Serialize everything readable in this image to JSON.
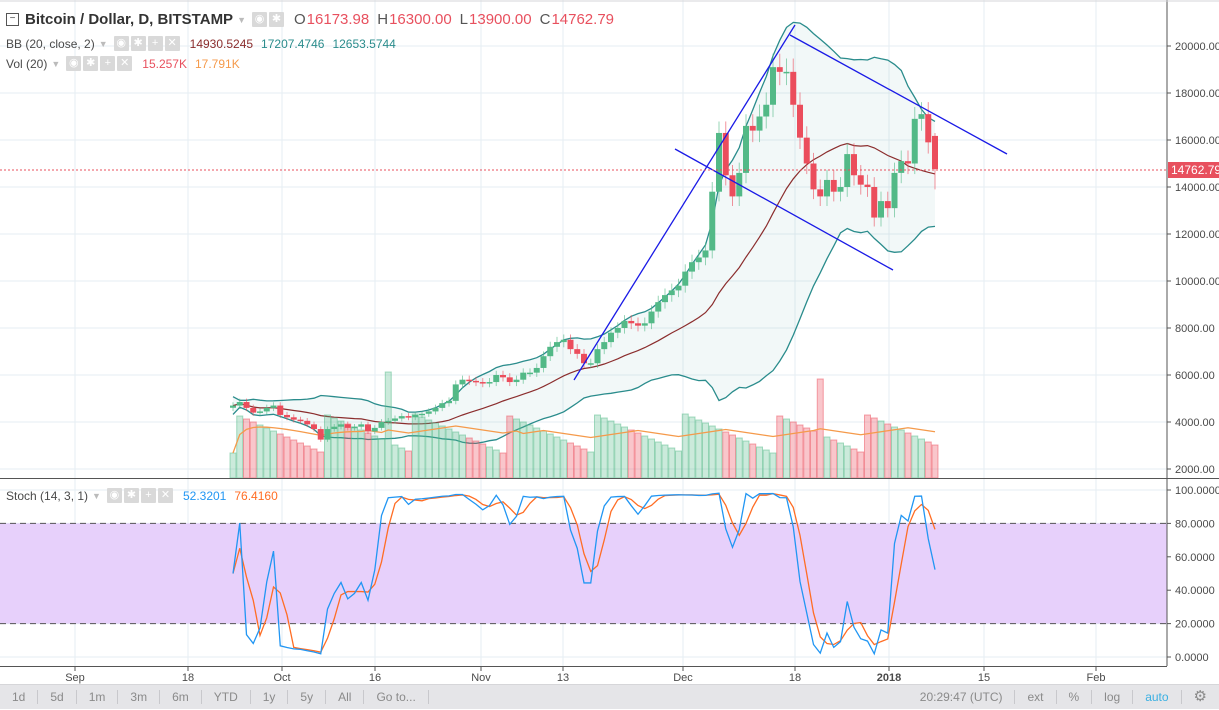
{
  "header": {
    "symbol_title": "Bitcoin / Dollar, D, BITSTAMP",
    "ohlc": {
      "o_label": "O",
      "o": "16173.98",
      "h_label": "H",
      "h": "16300.00",
      "l_label": "L",
      "l": "13900.00",
      "c_label": "C",
      "c": "14762.79"
    },
    "bb": {
      "label": "BB (20, close, 2)",
      "basis": "14930.5245",
      "upper": "17207.4746",
      "lower": "12653.5744"
    },
    "vol": {
      "label": "Vol (20)",
      "value": "15.257K",
      "ma": "17.791K"
    },
    "stoch": {
      "label": "Stoch (14, 3, 1)",
      "k": "52.3201",
      "d": "76.4160"
    }
  },
  "last_price_tag": "14762.79",
  "toolbar": {
    "ranges": [
      "1d",
      "5d",
      "1m",
      "3m",
      "6m",
      "YTD",
      "1y",
      "5y",
      "All",
      "Go to..."
    ],
    "time": "20:29:47 (UTC)",
    "ext": "ext",
    "pct": "%",
    "log": "log",
    "auto": "auto"
  },
  "colors": {
    "up": "#53b987",
    "down": "#eb4d5c",
    "bb_band": "#2a8c8c",
    "bb_basis": "#8b2d2d",
    "vol_ma": "#f59a4b",
    "stoch_k": "#2196f3",
    "stoch_d": "#ff6d24",
    "stoch_band": "#e7d0fb",
    "trend": "#1a1ae6"
  },
  "chart_data": [
    {
      "type": "candlestick",
      "title": "Bitcoin / Dollar, D, BITSTAMP",
      "price_axis": {
        "ticks": [
          2000,
          4000,
          6000,
          8000,
          10000,
          12000,
          14000,
          16000,
          18000,
          20000
        ],
        "range": [
          1700,
          21500
        ]
      },
      "x_ticks": [
        "Sep",
        "18",
        "Oct",
        "16",
        "Nov",
        "13",
        "Dec",
        "18",
        "2018",
        "15",
        "Feb"
      ],
      "last_close": 14762.79,
      "close_series": [
        4700,
        4850,
        4600,
        4400,
        4450,
        4600,
        4700,
        4300,
        4200,
        4100,
        4050,
        3900,
        3700,
        3250,
        3700,
        3800,
        3900,
        3750,
        3800,
        3900,
        3600,
        3750,
        4000,
        4050,
        4150,
        4250,
        4200,
        4300,
        4350,
        4450,
        4600,
        4800,
        4900,
        5600,
        5800,
        5750,
        5700,
        5650,
        5700,
        6000,
        5900,
        5700,
        5800,
        6100,
        6100,
        6300,
        6800,
        7200,
        7400,
        7500,
        7100,
        6900,
        6500,
        6500,
        7100,
        7400,
        7800,
        8000,
        8300,
        8200,
        8100,
        8200,
        8700,
        9100,
        9400,
        9600,
        9800,
        10400,
        10800,
        11000,
        11300,
        13800,
        16300,
        14500,
        13600,
        14600,
        16600,
        16400,
        17000,
        17500,
        19100,
        18900,
        18900,
        17500,
        16100,
        15000,
        13900,
        13600,
        14300,
        13800,
        14000,
        15400,
        14500,
        14100,
        14000,
        12700,
        13400,
        13100,
        14600,
        15100,
        15000,
        16900,
        17100,
        15900,
        14762.79
      ]
    },
    {
      "type": "line",
      "title": "BB (20, close, 2)",
      "series": [
        {
          "name": "basis",
          "last": 14930.5245
        },
        {
          "name": "upper",
          "last": 17207.4746
        },
        {
          "name": "lower",
          "last": 12653.5744
        }
      ]
    },
    {
      "type": "bar",
      "title": "Vol (20)",
      "last_volume": "15.257K",
      "ma": "17.791K"
    },
    {
      "type": "line",
      "title": "Stoch (14, 3, 1)",
      "y_ticks": [
        0,
        20,
        40,
        60,
        80,
        100
      ],
      "bands": [
        20,
        80
      ],
      "series": [
        {
          "name": "%K",
          "last": 52.3201
        },
        {
          "name": "%D",
          "last": 76.416
        }
      ]
    }
  ]
}
